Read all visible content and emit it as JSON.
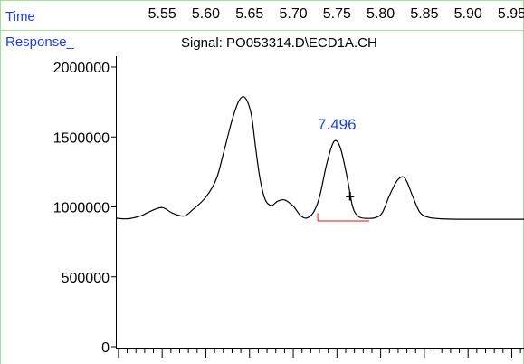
{
  "header": {
    "time_label": "Time",
    "response_label": "Response_",
    "signal_title": "Signal: PO053314.D\\ECD1A.CH"
  },
  "colors": {
    "frame_green": "#9be39b",
    "label_blue": "#1a3cff",
    "trace": "#000000",
    "baseline_red": "#ff0000"
  },
  "chart_data": {
    "type": "line",
    "title": "Signal: PO053314.D\\ECD1A.CH",
    "xlabel": "Time",
    "ylabel": "Response_",
    "xlim": [
      5.497,
      5.964
    ],
    "ylim": [
      0,
      2000000
    ],
    "x_ticks": [
      5.55,
      5.6,
      5.65,
      5.7,
      5.75,
      5.8,
      5.85,
      5.9,
      5.95
    ],
    "x_tick_labels": [
      "5.55",
      "5.60",
      "5.65",
      "5.70",
      "5.75",
      "5.80",
      "5.85",
      "5.90",
      "5.95"
    ],
    "y_ticks": [
      0,
      500000,
      1000000,
      1500000,
      2000000
    ],
    "y_tick_labels": [
      "0",
      "500000",
      "1000000",
      "1500000",
      "2000000"
    ],
    "series": [
      {
        "x": [
          5.497,
          5.51,
          5.525,
          5.537,
          5.55,
          5.562,
          5.575,
          5.585,
          5.6,
          5.612,
          5.62,
          5.63,
          5.638,
          5.645,
          5.652,
          5.657,
          5.662,
          5.668,
          5.675,
          5.682,
          5.69,
          5.7,
          5.708,
          5.715,
          5.723,
          5.73,
          5.738,
          5.745,
          5.75,
          5.755,
          5.762,
          5.768,
          5.775,
          5.785,
          5.795,
          5.802,
          5.81,
          5.818,
          5.825,
          5.83,
          5.837,
          5.845,
          5.855,
          5.87,
          5.89,
          5.92,
          5.964
        ],
        "y": [
          920000,
          915000,
          935000,
          970000,
          995000,
          955000,
          935000,
          980000,
          1070000,
          1200000,
          1380000,
          1620000,
          1760000,
          1780000,
          1660000,
          1420000,
          1200000,
          1050000,
          1010000,
          1040000,
          1050000,
          1005000,
          940000,
          920000,
          960000,
          1070000,
          1300000,
          1450000,
          1470000,
          1400000,
          1200000,
          1000000,
          930000,
          918000,
          925000,
          960000,
          1080000,
          1180000,
          1215000,
          1180000,
          1070000,
          960000,
          925000,
          915000,
          912000,
          912000,
          912000
        ]
      }
    ],
    "annotations": [
      {
        "text": "7.496",
        "x": 5.75,
        "y": 1555000
      },
      {
        "text": "+",
        "x": 5.765,
        "y": 1035000
      }
    ],
    "integration_baseline": {
      "start": {
        "x": 5.728,
        "y_top": 955000,
        "y_bottom": 900000
      },
      "end": {
        "x": 5.787,
        "y": 900000
      }
    },
    "grid": false,
    "legend": "none"
  }
}
